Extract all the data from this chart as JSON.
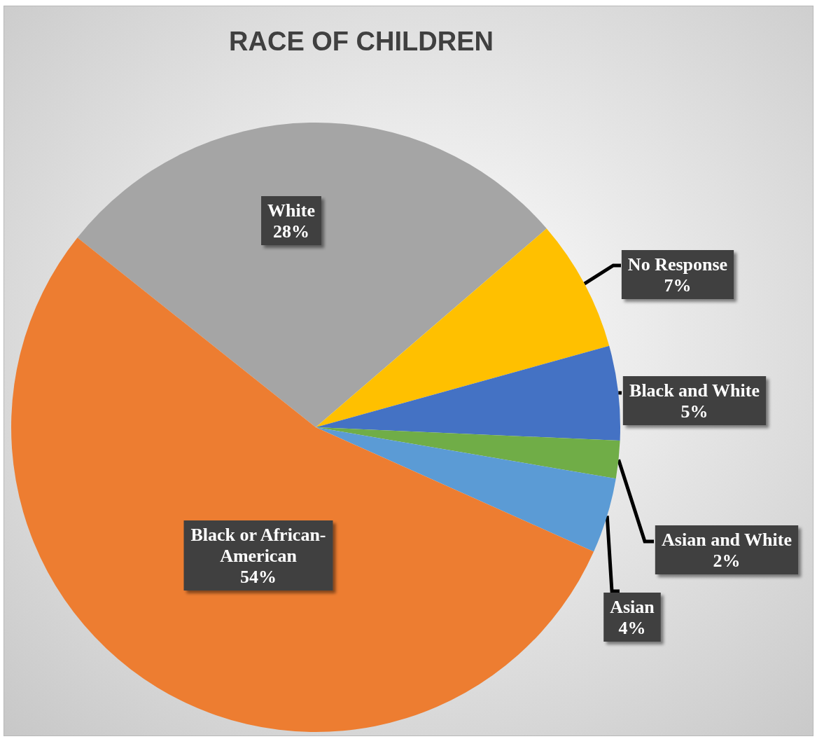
{
  "chart_data": {
    "type": "pie",
    "title": "RACE OF CHILDREN",
    "categories": [
      "White",
      "No Response",
      "Black and White",
      "Asian and White",
      "Asian",
      "Black or African-American"
    ],
    "values": [
      28,
      7,
      5,
      2,
      4,
      54
    ],
    "colors": [
      "#a5a5a5",
      "#ffc000",
      "#4472c4",
      "#70ad47",
      "#5b9bd5",
      "#ed7d31"
    ],
    "value_labels": [
      "28%",
      "7%",
      "5%",
      "2%",
      "4%",
      "54%"
    ]
  }
}
